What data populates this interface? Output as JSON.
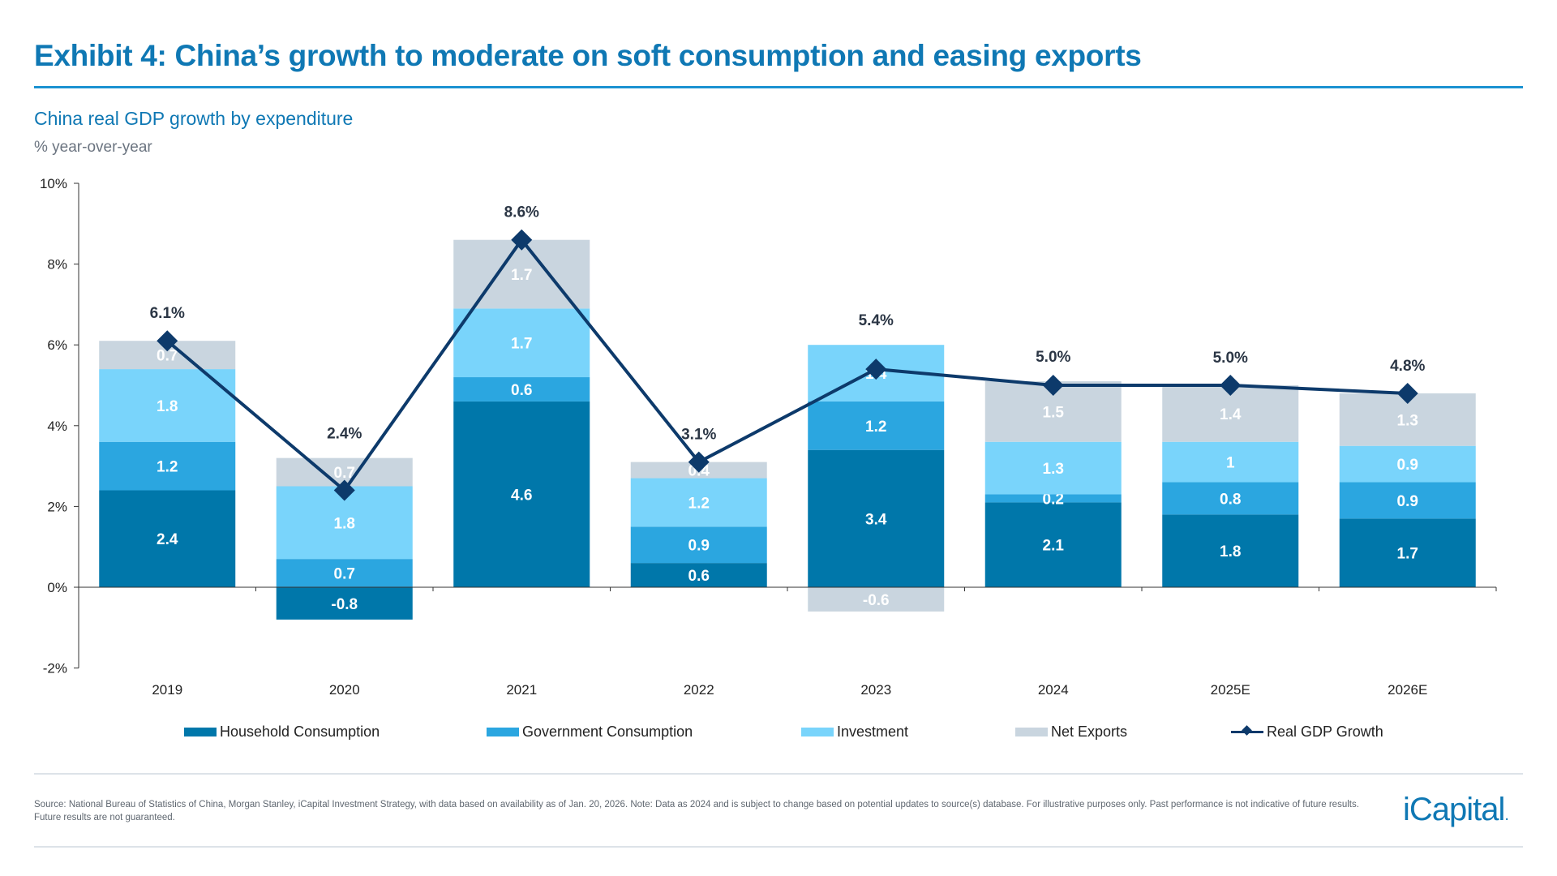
{
  "header": {
    "title": "Exhibit 4: China’s growth to moderate on soft consumption and easing exports"
  },
  "chart_data": {
    "type": "bar",
    "stacked": true,
    "title": "China real GDP growth by expenditure",
    "ylabel": "% year-over-year",
    "xlabel": "",
    "ylim": [
      -2,
      10
    ],
    "yticks": [
      "-2%",
      "0%",
      "2%",
      "4%",
      "6%",
      "8%",
      "10%"
    ],
    "yticks_values": [
      -2,
      0,
      2,
      4,
      6,
      8,
      10
    ],
    "grid": false,
    "legend_position": "bottom",
    "categories": [
      "2019",
      "2020",
      "2021",
      "2022",
      "2023",
      "2024",
      "2025E",
      "2026E"
    ],
    "series": [
      {
        "name": "Household Consumption",
        "kind": "bar",
        "color": "#0077aa",
        "values": [
          2.4,
          -0.8,
          4.6,
          0.6,
          3.4,
          2.1,
          1.8,
          1.7
        ]
      },
      {
        "name": "Government Consumption",
        "kind": "bar",
        "color": "#2ba6e0",
        "values": [
          1.2,
          0.7,
          0.6,
          0.9,
          1.2,
          0.2,
          0.8,
          0.9
        ]
      },
      {
        "name": "Investment",
        "kind": "bar",
        "color": "#79d4fb",
        "values": [
          1.8,
          1.8,
          1.7,
          1.2,
          1.4,
          1.3,
          1.0,
          0.9
        ]
      },
      {
        "name": "Net Exports",
        "kind": "bar",
        "color": "#c9d5df",
        "values": [
          0.7,
          0.7,
          1.7,
          0.4,
          -0.6,
          1.5,
          1.4,
          1.3
        ]
      },
      {
        "name": "Real GDP Growth",
        "kind": "line",
        "marker": "diamond",
        "color": "#0d3a6b",
        "values": [
          6.1,
          2.4,
          8.6,
          3.1,
          5.4,
          5.0,
          5.0,
          4.8
        ],
        "labels": [
          "6.1%",
          "2.4%",
          "8.6%",
          "3.1%",
          "5.4%",
          "5.0%",
          "5.0%",
          "4.8%"
        ]
      }
    ]
  },
  "footer": {
    "source": "Source: National Bureau of Statistics of China, Morgan Stanley, iCapital Investment Strategy, with data based on availability as of Jan. 20, 2026. Note: Data as 2024 and is subject to change based on potential updates to source(s) database. For illustrative purposes only. Past performance is not indicative of future results. Future results are not guaranteed.",
    "logo": "iCapital."
  }
}
